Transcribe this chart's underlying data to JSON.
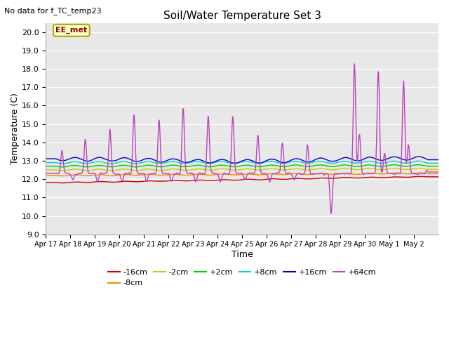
{
  "title": "Soil/Water Temperature Set 3",
  "xlabel": "Time",
  "ylabel": "Temperature (C)",
  "note": "No data for f_TC_temp23",
  "annotation": "EE_met",
  "ylim": [
    9.0,
    20.5
  ],
  "yticks": [
    9.0,
    10.0,
    11.0,
    12.0,
    13.0,
    14.0,
    15.0,
    16.0,
    17.0,
    18.0,
    19.0,
    20.0
  ],
  "xtick_labels": [
    "Apr 17",
    "Apr 18",
    "Apr 19",
    "Apr 20",
    "Apr 21",
    "Apr 22",
    "Apr 23",
    "Apr 24",
    "Apr 25",
    "Apr 26",
    "Apr 27",
    "Apr 28",
    "Apr 29",
    "Apr 30",
    "May 1",
    "May 2"
  ],
  "bg_color": "#e8e8e8",
  "colors": {
    "m16": "#cc0000",
    "m8": "#ff8800",
    "m2": "#cccc00",
    "p2": "#00cc00",
    "p8": "#00cccc",
    "p16": "#0000cc",
    "p64": "#bb44bb"
  },
  "legend_labels": [
    "-16cm",
    "-8cm",
    "-2cm",
    "+2cm",
    "+8cm",
    "+16cm",
    "+64cm"
  ]
}
